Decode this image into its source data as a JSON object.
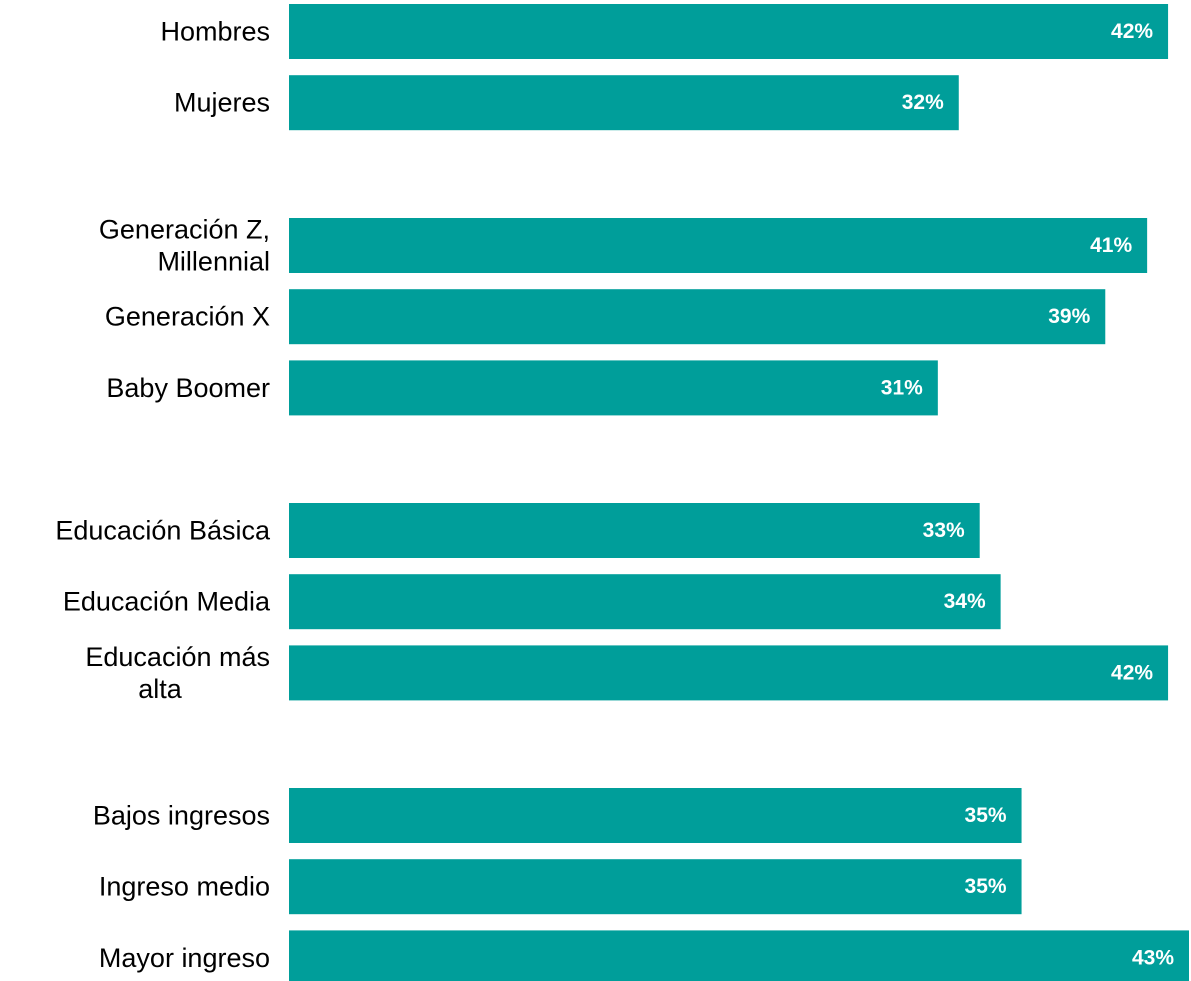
{
  "chart_data": {
    "type": "bar",
    "orientation": "horizontal",
    "title": "",
    "xlabel": "",
    "ylabel": "",
    "xlim": [
      0,
      43
    ],
    "grid": false,
    "legend": "none",
    "bar_color": "#009E9A",
    "value_label_color": "#FFFFFF",
    "value_suffix": "%",
    "groups": [
      {
        "categories": [
          {
            "label": [
              "Hombres"
            ],
            "value": 42
          },
          {
            "label": [
              "Mujeres"
            ],
            "value": 32
          }
        ]
      },
      {
        "categories": [
          {
            "label": [
              "Generación Z,",
              "Millennial"
            ],
            "value": 41
          },
          {
            "label": [
              "Generación X"
            ],
            "value": 39
          },
          {
            "label": [
              "Baby Boomer"
            ],
            "value": 31
          }
        ]
      },
      {
        "categories": [
          {
            "label": [
              "Educación Básica"
            ],
            "value": 33
          },
          {
            "label": [
              "Educación Media"
            ],
            "value": 34
          },
          {
            "label": [
              "Educación más",
              "alta"
            ],
            "value": 42
          }
        ]
      },
      {
        "categories": [
          {
            "label": [
              "Bajos ingresos"
            ],
            "value": 35
          },
          {
            "label": [
              "Ingreso medio"
            ],
            "value": 35
          },
          {
            "label": [
              "Mayor ingreso"
            ],
            "value": 43
          }
        ]
      }
    ]
  }
}
